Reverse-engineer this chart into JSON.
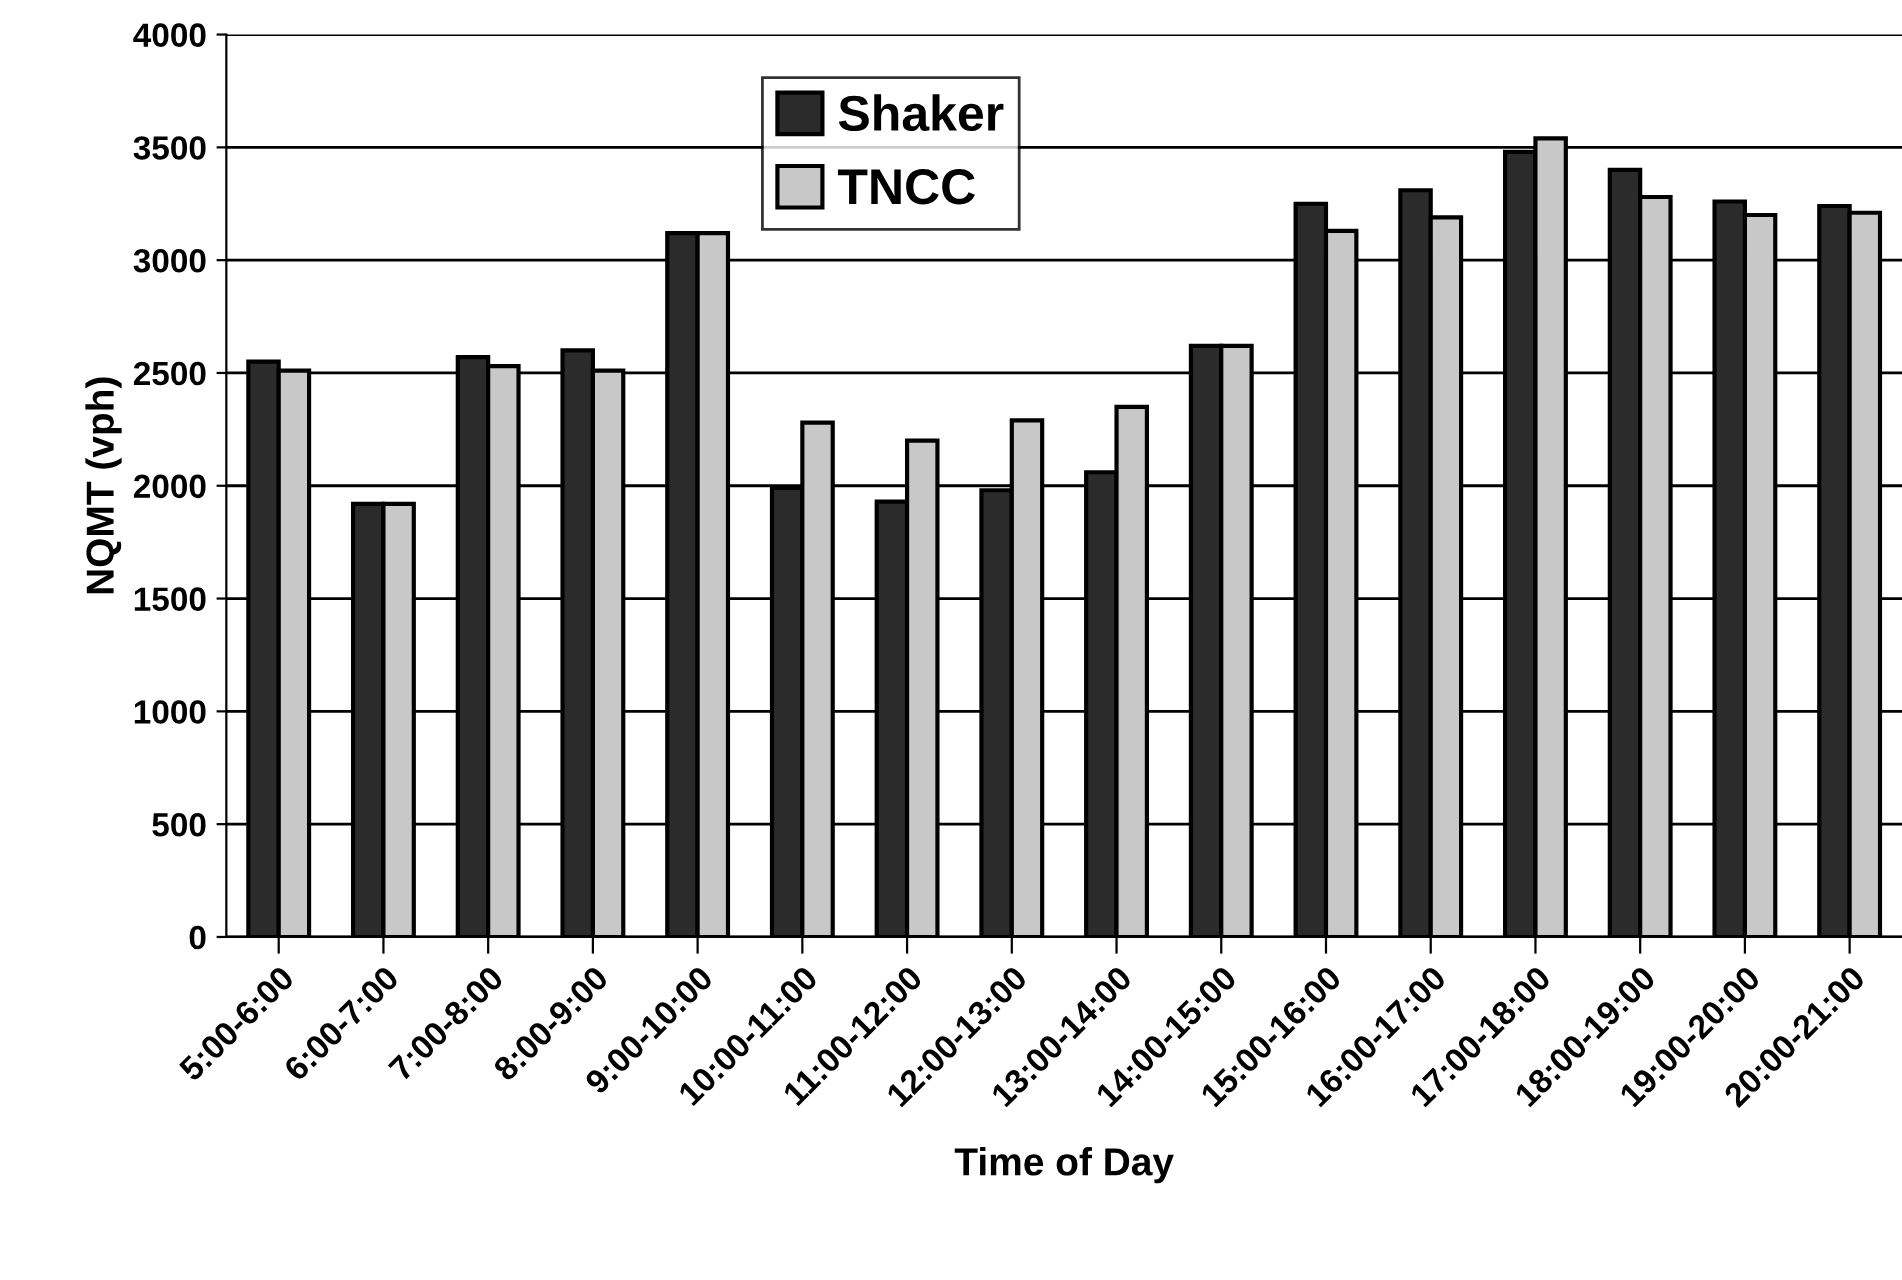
{
  "chart_data": {
    "type": "bar",
    "xlabel": "Time of Day",
    "ylabel": "NQMT (vph)",
    "categories": [
      "5:00-6:00",
      "6:00-7:00",
      "7:00-8:00",
      "8:00-9:00",
      "9:00-10:00",
      "10:00-11:00",
      "11:00-12:00",
      "12:00-13:00",
      "13:00-14:00",
      "14:00-15:00",
      "15:00-16:00",
      "16:00-17:00",
      "17:00-18:00",
      "18:00-19:00",
      "19:00-20:00",
      "20:00-21:00"
    ],
    "series": [
      {
        "name": "Shaker",
        "color": "#2b2b2b",
        "values": [
          2550,
          1920,
          2570,
          2600,
          3120,
          1990,
          1930,
          1980,
          2060,
          2620,
          3250,
          3310,
          3480,
          3400,
          3260,
          3240
        ]
      },
      {
        "name": "TNCC",
        "color": "#c8c8c8",
        "values": [
          2510,
          1920,
          2530,
          2510,
          3120,
          2280,
          2200,
          2290,
          2350,
          2620,
          3130,
          3190,
          3540,
          3280,
          3200,
          3210
        ]
      }
    ],
    "ylim": [
      0,
      4000
    ],
    "yticks": [
      0,
      500,
      1000,
      1500,
      2000,
      2500,
      3000,
      3500,
      4000
    ],
    "grid": "y",
    "legend": "top"
  }
}
